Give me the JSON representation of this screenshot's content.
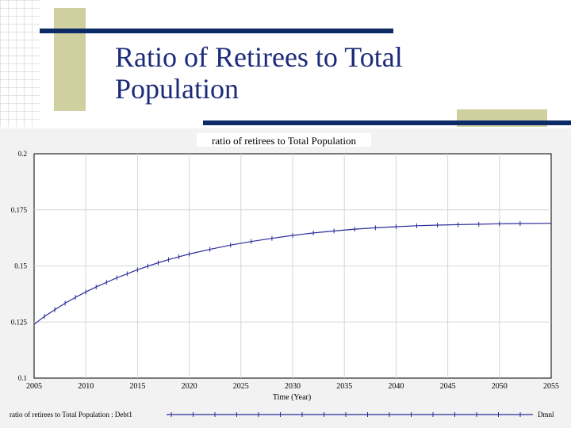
{
  "slide": {
    "title": "Ratio of Retirees to Total Population"
  },
  "colors": {
    "accent_navy": "#0b2a66",
    "accent_khaki": "#cfcf9f",
    "series": "#2b2b9a",
    "title_text": "#1c2b7a"
  },
  "chart_data": {
    "type": "line",
    "title": "ratio of retirees to Total Population",
    "xlabel": "Time (Year)",
    "ylabel": "",
    "xlim": [
      2005,
      2055
    ],
    "ylim": [
      0.1,
      0.2
    ],
    "x_ticks": [
      "2005",
      "2010",
      "2015",
      "2020",
      "2025",
      "2030",
      "2035",
      "2040",
      "2045",
      "2050",
      "2055"
    ],
    "y_ticks": [
      "0.2",
      "0.175",
      "0.15",
      "0.125",
      "0.1"
    ],
    "grid": true,
    "legend": {
      "position": "bottom",
      "label": "ratio of retirees to Total Population : Debt1",
      "units": "Dmnl",
      "marker": "1"
    },
    "series": [
      {
        "name": "ratio of retirees to Total Population : Debt1",
        "x": [
          2005,
          2006,
          2007,
          2008,
          2009,
          2010,
          2011,
          2012,
          2013,
          2014,
          2015,
          2016,
          2017,
          2018,
          2019,
          2020,
          2022,
          2024,
          2026,
          2028,
          2030,
          2032,
          2034,
          2036,
          2038,
          2040,
          2042,
          2044,
          2046,
          2048,
          2050,
          2052,
          2055
        ],
        "y": [
          0.124,
          0.1275,
          0.1305,
          0.1334,
          0.136,
          0.1384,
          0.1406,
          0.1427,
          0.1447,
          0.1465,
          0.1483,
          0.1499,
          0.1514,
          0.1528,
          0.1541,
          0.1553,
          0.1574,
          0.1593,
          0.1609,
          0.1623,
          0.1636,
          0.1647,
          0.1656,
          0.1664,
          0.167,
          0.1675,
          0.1679,
          0.1682,
          0.1684,
          0.1686,
          0.1688,
          0.1689,
          0.169
        ]
      }
    ]
  }
}
